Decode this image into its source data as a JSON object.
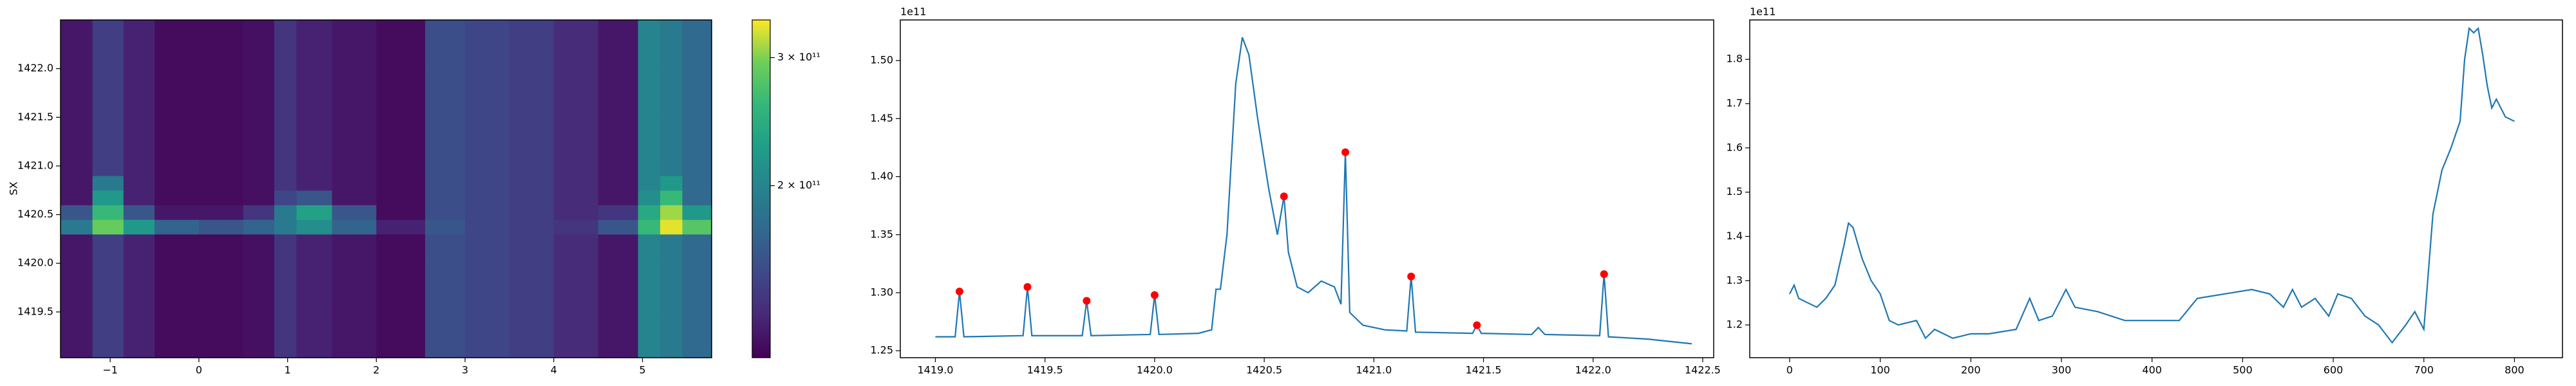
{
  "chart_data": [
    {
      "type": "heatmap",
      "ylabel": "SX",
      "colormap": "viridis",
      "x_edges": [
        -1.56,
        -1.2,
        -0.85,
        -0.5,
        0,
        0.5,
        0.85,
        1.1,
        1.5,
        2.0,
        2.55,
        3.0,
        3.5,
        4.0,
        4.5,
        4.95,
        5.2,
        5.45,
        5.78
      ],
      "y_edges": [
        1419.03,
        1419.5,
        1420.0,
        1420.3,
        1420.45,
        1420.6,
        1420.75,
        1420.9,
        1421.0,
        1421.5,
        1422.0,
        1422.5
      ],
      "z": [
        [
          125000000000.0,
          145000000000.0,
          130000000000.0,
          120000000000.0,
          120000000000.0,
          122000000000.0,
          140000000000.0,
          130000000000.0,
          125000000000.0,
          120000000000.0,
          155000000000.0,
          150000000000.0,
          145000000000.0,
          135000000000.0,
          125000000000.0,
          200000000000.0,
          190000000000.0,
          175000000000.0
        ],
        [
          125000000000.0,
          145000000000.0,
          130000000000.0,
          120000000000.0,
          120000000000.0,
          122000000000.0,
          140000000000.0,
          130000000000.0,
          125000000000.0,
          120000000000.0,
          155000000000.0,
          150000000000.0,
          145000000000.0,
          135000000000.0,
          125000000000.0,
          200000000000.0,
          190000000000.0,
          175000000000.0
        ],
        [
          125000000000.0,
          145000000000.0,
          130000000000.0,
          120000000000.0,
          120000000000.0,
          122000000000.0,
          140000000000.0,
          130000000000.0,
          125000000000.0,
          120000000000.0,
          155000000000.0,
          150000000000.0,
          145000000000.0,
          135000000000.0,
          125000000000.0,
          200000000000.0,
          190000000000.0,
          175000000000.0
        ],
        [
          190000000000.0,
          290000000000.0,
          220000000000.0,
          170000000000.0,
          160000000000.0,
          170000000000.0,
          190000000000.0,
          210000000000.0,
          170000000000.0,
          130000000000.0,
          160000000000.0,
          150000000000.0,
          145000000000.0,
          140000000000.0,
          160000000000.0,
          260000000000.0,
          330000000000.0,
          280000000000.0
        ],
        [
          160000000000.0,
          260000000000.0,
          160000000000.0,
          125000000000.0,
          125000000000.0,
          140000000000.0,
          190000000000.0,
          230000000000.0,
          160000000000.0,
          120000000000.0,
          155000000000.0,
          150000000000.0,
          145000000000.0,
          135000000000.0,
          140000000000.0,
          240000000000.0,
          310000000000.0,
          220000000000.0
        ],
        [
          125000000000.0,
          220000000000.0,
          130000000000.0,
          120000000000.0,
          120000000000.0,
          122000000000.0,
          150000000000.0,
          160000000000.0,
          125000000000.0,
          120000000000.0,
          155000000000.0,
          150000000000.0,
          145000000000.0,
          135000000000.0,
          125000000000.0,
          210000000000.0,
          260000000000.0,
          175000000000.0
        ],
        [
          125000000000.0,
          190000000000.0,
          130000000000.0,
          120000000000.0,
          120000000000.0,
          122000000000.0,
          140000000000.0,
          130000000000.0,
          125000000000.0,
          120000000000.0,
          155000000000.0,
          150000000000.0,
          145000000000.0,
          135000000000.0,
          125000000000.0,
          200000000000.0,
          220000000000.0,
          175000000000.0
        ],
        [
          125000000000.0,
          145000000000.0,
          130000000000.0,
          120000000000.0,
          120000000000.0,
          122000000000.0,
          140000000000.0,
          130000000000.0,
          125000000000.0,
          120000000000.0,
          155000000000.0,
          150000000000.0,
          145000000000.0,
          135000000000.0,
          125000000000.0,
          200000000000.0,
          190000000000.0,
          175000000000.0
        ],
        [
          125000000000.0,
          145000000000.0,
          130000000000.0,
          120000000000.0,
          120000000000.0,
          122000000000.0,
          140000000000.0,
          130000000000.0,
          125000000000.0,
          120000000000.0,
          155000000000.0,
          150000000000.0,
          145000000000.0,
          135000000000.0,
          125000000000.0,
          200000000000.0,
          190000000000.0,
          175000000000.0
        ],
        [
          125000000000.0,
          145000000000.0,
          130000000000.0,
          120000000000.0,
          120000000000.0,
          122000000000.0,
          140000000000.0,
          130000000000.0,
          125000000000.0,
          120000000000.0,
          155000000000.0,
          150000000000.0,
          145000000000.0,
          135000000000.0,
          125000000000.0,
          200000000000.0,
          190000000000.0,
          175000000000.0
        ],
        [
          125000000000.0,
          145000000000.0,
          130000000000.0,
          120000000000.0,
          120000000000.0,
          122000000000.0,
          140000000000.0,
          130000000000.0,
          125000000000.0,
          120000000000.0,
          155000000000.0,
          150000000000.0,
          145000000000.0,
          135000000000.0,
          125000000000.0,
          200000000000.0,
          190000000000.0,
          175000000000.0
        ]
      ],
      "xlim": [
        -1.56,
        5.78
      ],
      "xticks": [
        {
          "value": -1,
          "label": "−1"
        },
        0,
        1,
        2,
        3,
        4,
        5
      ],
      "ylim": [
        1419.03,
        1422.5
      ],
      "yticks": [
        {
          "value": 1419.5,
          "label": "1419.5"
        },
        {
          "value": 1420,
          "label": "1420.0"
        },
        1420.5,
        {
          "value": 1421,
          "label": "1421.0"
        },
        1421.5,
        {
          "value": 1422,
          "label": "1422.0"
        }
      ],
      "colorbar": {
        "log": true,
        "zlim": [
          116000000000.0,
          338000000000.0
        ],
        "ticks": [
          {
            "value": 200000000000.0,
            "label": "2 × 10¹¹"
          },
          {
            "value": 300000000000.0,
            "label": "3 × 10¹¹"
          }
        ]
      }
    },
    {
      "type": "line",
      "offset_label": "1e11",
      "color": "#1f77b4",
      "x": [
        1419.0,
        1419.09,
        1419.11,
        1419.13,
        1419.4,
        1419.42,
        1419.44,
        1419.67,
        1419.69,
        1419.71,
        1419.98,
        1420.0,
        1420.02,
        1420.2,
        1420.26,
        1420.28,
        1420.3,
        1420.33,
        1420.37,
        1420.4,
        1420.43,
        1420.47,
        1420.52,
        1420.56,
        1420.59,
        1420.61,
        1420.65,
        1420.7,
        1420.76,
        1420.82,
        1420.85,
        1420.87,
        1420.89,
        1420.95,
        1421.05,
        1421.15,
        1421.17,
        1421.19,
        1421.45,
        1421.47,
        1421.49,
        1421.72,
        1421.75,
        1421.78,
        1422.03,
        1422.05,
        1422.07,
        1422.25,
        1422.45
      ],
      "values": [
        1.262,
        1.262,
        1.301,
        1.262,
        1.263,
        1.305,
        1.263,
        1.263,
        1.293,
        1.263,
        1.264,
        1.298,
        1.264,
        1.265,
        1.268,
        1.303,
        1.303,
        1.35,
        1.48,
        1.52,
        1.505,
        1.45,
        1.39,
        1.35,
        1.383,
        1.335,
        1.305,
        1.3,
        1.31,
        1.305,
        1.29,
        1.421,
        1.283,
        1.272,
        1.268,
        1.267,
        1.314,
        1.266,
        1.265,
        1.272,
        1.265,
        1.264,
        1.27,
        1.264,
        1.263,
        1.316,
        1.262,
        1.26,
        1.256
      ],
      "markers": {
        "color": "#ff0000",
        "x": [
          1419.11,
          1419.42,
          1419.69,
          1420.0,
          1420.59,
          1420.87,
          1421.17,
          1421.47,
          1422.05
        ],
        "values": [
          1.301,
          1.305,
          1.293,
          1.298,
          1.383,
          1.421,
          1.314,
          1.272,
          1.316
        ]
      },
      "xlim": [
        1418.84,
        1422.55
      ],
      "xticks": [
        {
          "value": 1419,
          "label": "1419.0"
        },
        1419.5,
        {
          "value": 1420,
          "label": "1420.0"
        },
        1420.5,
        {
          "value": 1421,
          "label": "1421.0"
        },
        1421.5,
        {
          "value": 1422,
          "label": "1422.0"
        },
        1422.5
      ],
      "ylim": [
        1.244,
        1.535
      ],
      "yticks": [
        1.25,
        {
          "value": 1.3,
          "label": "1.30"
        },
        1.35,
        {
          "value": 1.4,
          "label": "1.40"
        },
        1.45,
        {
          "value": 1.5,
          "label": "1.50"
        }
      ]
    },
    {
      "type": "line",
      "offset_label": "1e11",
      "color": "#1f77b4",
      "x": [
        0,
        5,
        10,
        20,
        30,
        40,
        50,
        60,
        65,
        70,
        80,
        90,
        100,
        110,
        120,
        140,
        150,
        160,
        180,
        200,
        220,
        250,
        265,
        275,
        290,
        305,
        315,
        340,
        370,
        400,
        430,
        450,
        480,
        510,
        530,
        545,
        555,
        565,
        580,
        595,
        605,
        620,
        635,
        650,
        665,
        680,
        690,
        700,
        710,
        720,
        730,
        740,
        745,
        750,
        755,
        760,
        765,
        770,
        775,
        780,
        790,
        800
      ],
      "values": [
        1.27,
        1.29,
        1.26,
        1.25,
        1.24,
        1.26,
        1.29,
        1.38,
        1.43,
        1.42,
        1.35,
        1.3,
        1.27,
        1.21,
        1.2,
        1.21,
        1.17,
        1.19,
        1.17,
        1.18,
        1.18,
        1.19,
        1.26,
        1.21,
        1.22,
        1.28,
        1.24,
        1.23,
        1.21,
        1.21,
        1.21,
        1.26,
        1.27,
        1.28,
        1.27,
        1.24,
        1.28,
        1.24,
        1.26,
        1.22,
        1.27,
        1.26,
        1.22,
        1.2,
        1.16,
        1.2,
        1.23,
        1.19,
        1.45,
        1.55,
        1.6,
        1.66,
        1.8,
        1.87,
        1.86,
        1.87,
        1.81,
        1.74,
        1.69,
        1.71,
        1.67,
        1.66
      ],
      "xlim": [
        -44,
        853
      ],
      "xticks": [
        0,
        100,
        200,
        300,
        400,
        500,
        600,
        700,
        800
      ],
      "ylim": [
        1.126,
        1.889
      ],
      "yticks": [
        1.2,
        1.3,
        1.4,
        1.5,
        1.6,
        1.7,
        1.8
      ]
    }
  ]
}
